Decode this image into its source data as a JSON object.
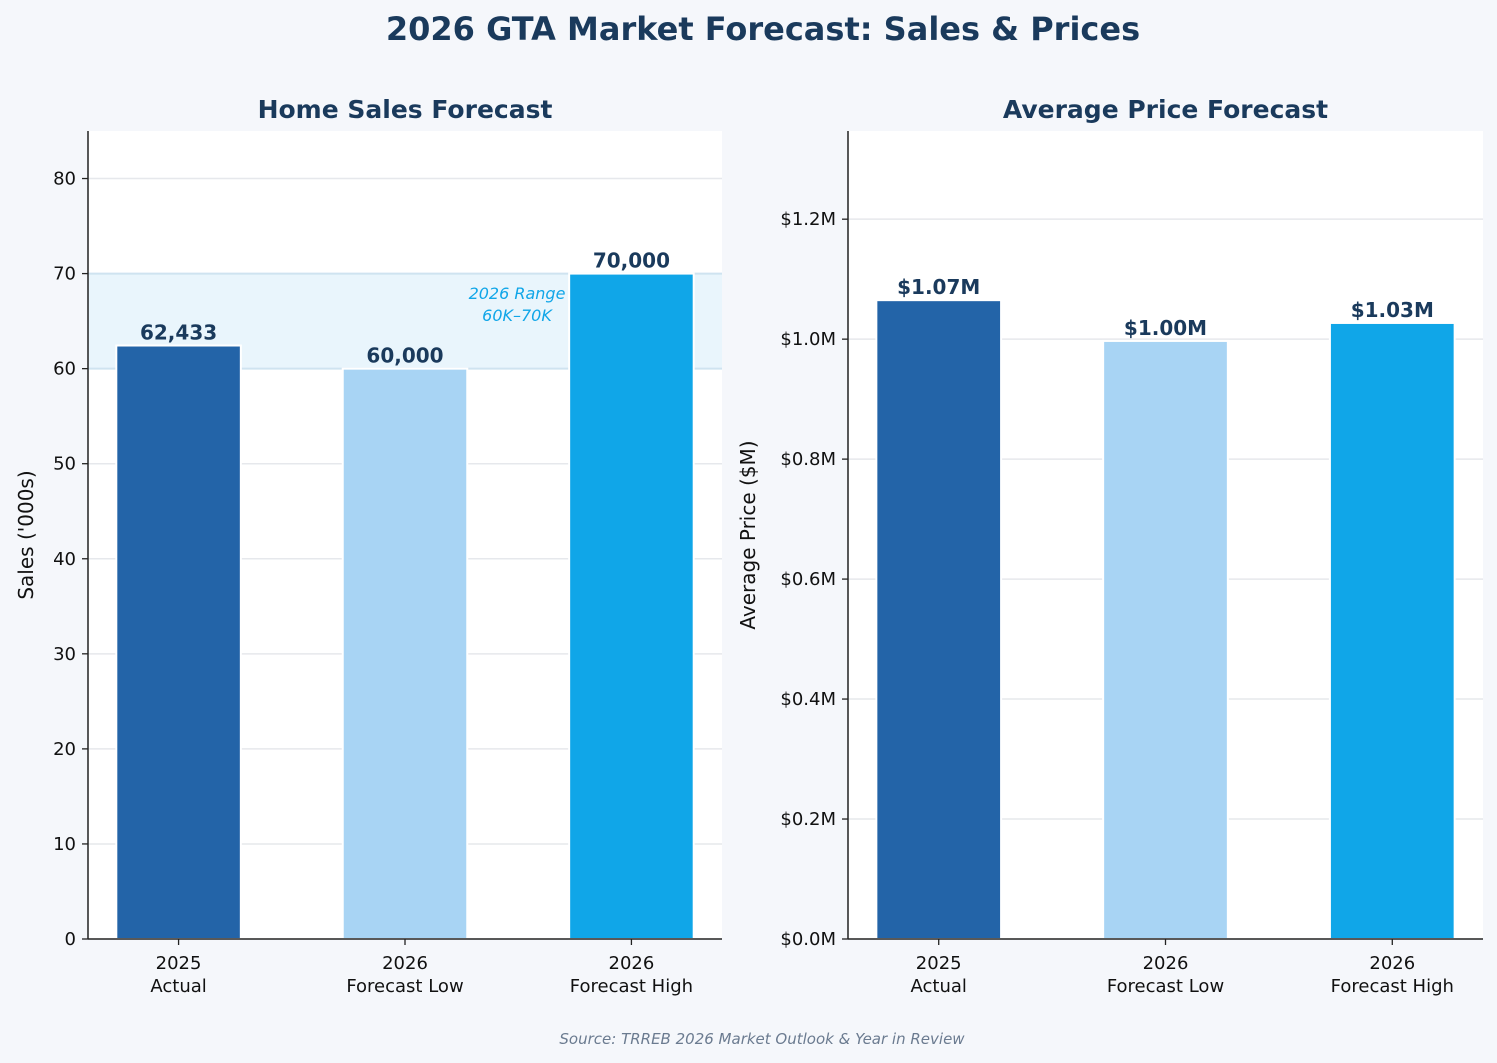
{
  "title": "2026 GTA Market Forecast: Sales & Prices",
  "source": "Source: TRREB 2026 Market Outlook & Year in Review",
  "colors": {
    "actual": "#2364a8",
    "low": "#a8d4f4",
    "high": "#10a6e8",
    "title": "#1a3a5c",
    "band": "#e9f5fc",
    "annotation": "#10a6e8"
  },
  "chart_data": [
    {
      "type": "bar",
      "title": "Home Sales Forecast",
      "xlabel": "",
      "ylabel": "Sales ('000s)",
      "categories": [
        [
          "2025",
          "Actual"
        ],
        [
          "2026",
          "Forecast Low"
        ],
        [
          "2026",
          "Forecast High"
        ]
      ],
      "values": [
        62.433,
        60.0,
        70.0
      ],
      "data_labels": [
        "62,433",
        "60,000",
        "70,000"
      ],
      "ylim": [
        0,
        85
      ],
      "yticks": [
        0,
        10,
        20,
        30,
        40,
        50,
        60,
        70,
        80
      ],
      "ytick_labels": [
        "0",
        "10",
        "20",
        "30",
        "40",
        "50",
        "60",
        "70",
        "80"
      ],
      "grid": true,
      "band": {
        "from": 60,
        "to": 70,
        "label_lines": [
          "2026 Range",
          "60K–70K"
        ]
      }
    },
    {
      "type": "bar",
      "title": "Average Price Forecast",
      "xlabel": "",
      "ylabel": "Average Price ($M)",
      "categories": [
        [
          "2025",
          "Actual"
        ],
        [
          "2026",
          "Forecast Low"
        ],
        [
          "2026",
          "Forecast High"
        ]
      ],
      "values": [
        1.065,
        0.997,
        1.027
      ],
      "data_labels": [
        "$1.07M",
        "$1.00M",
        "$1.03M"
      ],
      "ylim": [
        0,
        1.347
      ],
      "yticks": [
        0,
        0.2,
        0.4,
        0.6,
        0.8,
        1.0,
        1.2
      ],
      "ytick_labels": [
        "$0.0M",
        "$0.2M",
        "$0.4M",
        "$0.6M",
        "$0.8M",
        "$1.0M",
        "$1.2M"
      ],
      "grid": true
    }
  ]
}
